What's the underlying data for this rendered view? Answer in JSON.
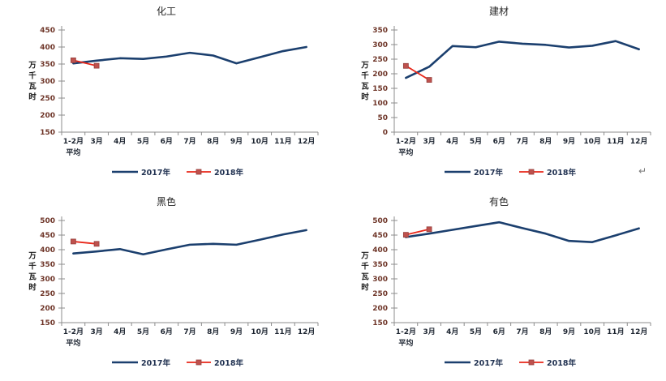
{
  "page": {
    "background": "#ffffff",
    "return_mark": "↵"
  },
  "colors": {
    "line_2017": "#1b3f6e",
    "line_2018": "#e8271a",
    "marker_2018": "#bf514d",
    "marker_border_2018": "#94403d",
    "axis_line": "#8c8c8c",
    "y_tick_text": "#6e3528",
    "x_tick_text": "#1c2430",
    "title_text": "#262626",
    "legend_text": "#1f3050",
    "return_mark_color": "#7a7a7a"
  },
  "chart_data": [
    {
      "type": "line",
      "title": "化工",
      "ylabel": "万千瓦时",
      "ylabel_chars": [
        "万",
        "千",
        "瓦",
        "时"
      ],
      "xlabel": "",
      "x_sub_label": "平均",
      "categories": [
        "1-2月",
        "3月",
        "4月",
        "5月",
        "6月",
        "7月",
        "8月",
        "9月",
        "10月",
        "11月",
        "12月"
      ],
      "ylim": [
        150,
        450
      ],
      "ytick_step": 50,
      "grid": false,
      "legend_position": "bottom",
      "series": [
        {
          "name": "2017年",
          "values": [
            352,
            360,
            367,
            365,
            372,
            383,
            375,
            352,
            370,
            388,
            400
          ],
          "marker": "none"
        },
        {
          "name": "2018年",
          "values": [
            361,
            345
          ],
          "marker": "square"
        }
      ]
    },
    {
      "type": "line",
      "title": "建材",
      "ylabel": "万千瓦时",
      "ylabel_chars": [
        "万",
        "千",
        "瓦",
        "时"
      ],
      "xlabel": "",
      "x_sub_label": "平均",
      "categories": [
        "1-2月",
        "3月",
        "4月",
        "5月",
        "6月",
        "7月",
        "8月",
        "9月",
        "10月",
        "11月",
        "12月"
      ],
      "ylim": [
        0,
        350
      ],
      "ytick_step": 50,
      "grid": false,
      "legend_position": "bottom",
      "series": [
        {
          "name": "2017年",
          "values": [
            186,
            224,
            295,
            291,
            310,
            303,
            299,
            290,
            296,
            312,
            284
          ],
          "marker": "none"
        },
        {
          "name": "2018年",
          "values": [
            227,
            179
          ],
          "marker": "square"
        }
      ]
    },
    {
      "type": "line",
      "title": "黑色",
      "ylabel": "万千瓦时",
      "ylabel_chars": [
        "万",
        "千",
        "瓦",
        "时"
      ],
      "xlabel": "",
      "x_sub_label": "平均",
      "categories": [
        "1-2月",
        "3月",
        "4月",
        "5月",
        "6月",
        "7月",
        "8月",
        "9月",
        "10月",
        "11月",
        "12月"
      ],
      "ylim": [
        150,
        500
      ],
      "ytick_step": 50,
      "grid": false,
      "legend_position": "bottom",
      "series": [
        {
          "name": "2017年",
          "values": [
            387,
            394,
            402,
            384,
            401,
            417,
            420,
            417,
            434,
            452,
            467
          ],
          "marker": "none"
        },
        {
          "name": "2018年",
          "values": [
            428,
            420
          ],
          "marker": "square"
        }
      ]
    },
    {
      "type": "line",
      "title": "有色",
      "ylabel": "万千瓦时",
      "ylabel_chars": [
        "万",
        "千",
        "瓦",
        "时"
      ],
      "xlabel": "",
      "x_sub_label": "平均",
      "categories": [
        "1-2月",
        "3月",
        "4月",
        "5月",
        "6月",
        "7月",
        "8月",
        "9月",
        "10月",
        "11月",
        "12月"
      ],
      "ylim": [
        150,
        500
      ],
      "ytick_step": 50,
      "grid": false,
      "legend_position": "bottom",
      "series": [
        {
          "name": "2017年",
          "values": [
            443,
            455,
            468,
            481,
            494,
            474,
            455,
            430,
            426,
            449,
            473
          ],
          "marker": "none"
        },
        {
          "name": "2018年",
          "values": [
            451,
            470
          ],
          "marker": "square"
        }
      ]
    }
  ]
}
